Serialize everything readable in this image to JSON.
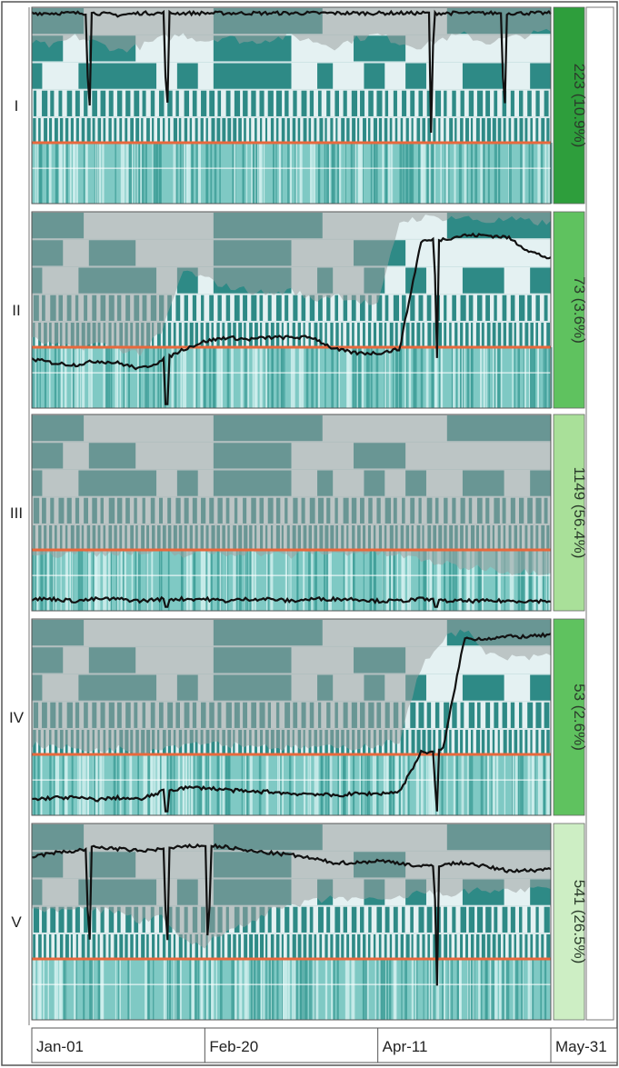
{
  "chart_data": {
    "type": "heatmap",
    "description_of_layout": "",
    "x_ticks": [
      "Jan-01",
      "Feb-20",
      "Apr-11",
      "May-31"
    ],
    "colors": {
      "row_on": "#2e8a86",
      "row_bg": "#e4f1f2",
      "envelope": "#9aa0a0",
      "line": "#111111",
      "separator": "#e8683c",
      "bar_dark": "#2e9e3c",
      "bar_mid": "#5fc25f",
      "bar_light": "#a9e099",
      "bar_pale": "#cdeec4"
    },
    "clusters": [
      {
        "id": "I",
        "label": "223 (10.9%)",
        "count": 223,
        "percent": 10.9,
        "size_color": "bar_dark",
        "line_level": [
          0.97,
          0.97,
          0.97,
          0.97,
          0.96,
          0.97,
          0.97,
          0.97,
          0.97,
          0.97,
          0.97,
          0.97,
          0.97,
          0.97,
          0.97,
          0.97,
          0.97,
          0.97,
          0.97,
          0.97,
          0.97,
          0.97,
          0.97,
          0.97,
          0.97
        ],
        "envelope_low": [
          0.82,
          0.8,
          0.85,
          0.82,
          0.78,
          0.8,
          0.84,
          0.86,
          0.83,
          0.85,
          0.82,
          0.84,
          0.85,
          0.83,
          0.8,
          0.84,
          0.86,
          0.82,
          0.8,
          0.84,
          0.86,
          0.82,
          0.84,
          0.86,
          0.88
        ],
        "spikes": [
          0.11,
          0.26,
          0.77,
          0.91
        ]
      },
      {
        "id": "II",
        "label": "73 (3.6%)",
        "count": 73,
        "percent": 3.6,
        "size_color": "bar_mid",
        "line_level": [
          0.25,
          0.23,
          0.22,
          0.24,
          0.23,
          0.2,
          0.24,
          0.3,
          0.34,
          0.36,
          0.35,
          0.36,
          0.36,
          0.36,
          0.3,
          0.28,
          0.28,
          0.3,
          0.85,
          0.86,
          0.88,
          0.88,
          0.87,
          0.8,
          0.76
        ],
        "envelope_low": [
          0.35,
          0.32,
          0.3,
          0.33,
          0.3,
          0.28,
          0.38,
          0.7,
          0.66,
          0.62,
          0.6,
          0.58,
          0.6,
          0.55,
          0.58,
          0.55,
          0.52,
          0.95,
          0.97,
          0.97,
          0.97,
          0.95,
          0.96,
          0.95,
          0.94
        ],
        "spikes": [
          0.26,
          0.78
        ]
      },
      {
        "id": "III",
        "label": "1149 (56.4%)",
        "count": 1149,
        "percent": 56.4,
        "size_color": "bar_light",
        "line_level": [
          0.06,
          0.06,
          0.05,
          0.06,
          0.06,
          0.05,
          0.06,
          0.06,
          0.06,
          0.05,
          0.06,
          0.06,
          0.05,
          0.06,
          0.06,
          0.06,
          0.05,
          0.05,
          0.06,
          0.05,
          0.05,
          0.05,
          0.05,
          0.05,
          0.05
        ],
        "envelope_low": [
          0.3,
          0.28,
          0.3,
          0.29,
          0.3,
          0.29,
          0.3,
          0.28,
          0.3,
          0.29,
          0.3,
          0.29,
          0.28,
          0.3,
          0.29,
          0.3,
          0.29,
          0.28,
          0.26,
          0.24,
          0.22,
          0.22,
          0.2,
          0.2,
          0.2
        ],
        "spikes": [
          0.26,
          0.78
        ]
      },
      {
        "id": "IV",
        "label": "53 (2.6%)",
        "count": 53,
        "percent": 2.6,
        "size_color": "bar_mid",
        "line_level": [
          0.08,
          0.09,
          0.09,
          0.08,
          0.09,
          0.08,
          0.12,
          0.14,
          0.14,
          0.13,
          0.12,
          0.12,
          0.11,
          0.11,
          0.1,
          0.11,
          0.11,
          0.12,
          0.32,
          0.33,
          0.9,
          0.9,
          0.91,
          0.91,
          0.92
        ],
        "envelope_low": [
          0.36,
          0.35,
          0.34,
          0.33,
          0.34,
          0.32,
          0.35,
          0.36,
          0.38,
          0.36,
          0.36,
          0.35,
          0.34,
          0.35,
          0.34,
          0.35,
          0.36,
          0.38,
          0.75,
          0.9,
          0.95,
          0.82,
          0.8,
          0.8,
          0.82
        ],
        "spikes": [
          0.26,
          0.78
        ]
      },
      {
        "id": "V",
        "label": "541 (26.5%)",
        "count": 541,
        "percent": 26.5,
        "size_color": "bar_pale",
        "line_level": [
          0.83,
          0.85,
          0.86,
          0.88,
          0.87,
          0.86,
          0.87,
          0.88,
          0.89,
          0.88,
          0.86,
          0.85,
          0.84,
          0.82,
          0.8,
          0.8,
          0.81,
          0.8,
          0.78,
          0.79,
          0.8,
          0.78,
          0.76,
          0.76,
          0.77
        ],
        "envelope_low": [
          0.55,
          0.56,
          0.58,
          0.56,
          0.55,
          0.5,
          0.52,
          0.4,
          0.38,
          0.45,
          0.5,
          0.55,
          0.58,
          0.6,
          0.62,
          0.62,
          0.6,
          0.62,
          0.65,
          0.64,
          0.65,
          0.66,
          0.66,
          0.66,
          0.66
        ],
        "spikes": [
          0.11,
          0.26,
          0.34,
          0.78
        ]
      }
    ],
    "patterns": {
      "row1": [
        [
          0,
          0.1
        ],
        [
          0.35,
          0.56
        ],
        [
          0.8,
          1
        ]
      ],
      "row2": [
        [
          0,
          0.06
        ],
        [
          0.11,
          0.2
        ],
        [
          0.35,
          0.5
        ],
        [
          0.62,
          0.72
        ]
      ],
      "row3": [
        [
          0,
          0.02
        ],
        [
          0.09,
          0.24
        ],
        [
          0.28,
          0.32
        ],
        [
          0.35,
          0.5
        ],
        [
          0.55,
          0.58
        ],
        [
          0.64,
          0.68
        ],
        [
          0.72,
          0.76
        ],
        [
          0.83,
          0.91
        ],
        [
          0.96,
          1
        ]
      ],
      "row5_bars": 62,
      "row6_bars": 96
    }
  }
}
